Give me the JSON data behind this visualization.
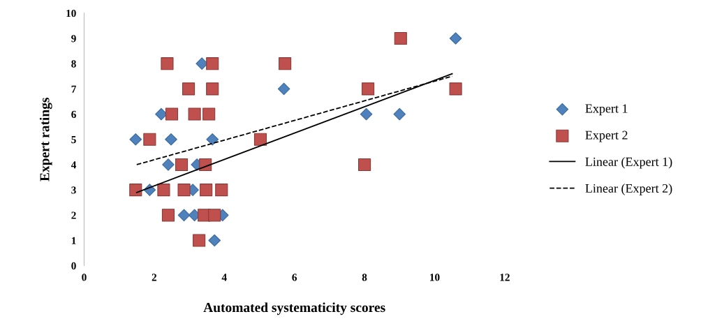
{
  "chart_data": {
    "type": "scatter",
    "xlabel": "Automated systematicity scores",
    "ylabel": "Expert ratings",
    "xlim": [
      0,
      12
    ],
    "xticks": [
      0,
      2,
      4,
      6,
      8,
      10,
      12
    ],
    "ylim": [
      0,
      10
    ],
    "yticks": [
      0,
      1,
      2,
      3,
      4,
      5,
      6,
      7,
      8,
      9,
      10
    ],
    "grid": false,
    "legend": "right",
    "series": [
      {
        "name": "Expert 1",
        "marker": "diamond",
        "color": "#4f81bd",
        "x": [
          2.2,
          3.36,
          1.47,
          2.48,
          3.66,
          2.4,
          3.22,
          1.87,
          3.1,
          2.85,
          3.15,
          3.95,
          3.72,
          5.7,
          8.05,
          9.0,
          10.6
        ],
        "values": [
          6,
          8,
          5,
          5,
          5,
          4,
          4,
          3,
          3,
          2,
          2,
          2,
          1,
          7,
          6,
          6,
          9
        ]
      },
      {
        "name": "Expert 2",
        "marker": "square",
        "color": "#c0504d",
        "x": [
          1.47,
          2.27,
          2.85,
          3.48,
          3.92,
          2.4,
          3.42,
          3.72,
          3.28,
          2.78,
          3.46,
          1.87,
          5.03,
          2.5,
          3.15,
          3.56,
          2.98,
          3.66,
          2.37,
          3.66,
          5.73,
          8.1,
          8.0,
          9.03,
          10.6
        ],
        "values": [
          3,
          3,
          3,
          3,
          3,
          2,
          2,
          2,
          1,
          4,
          4,
          5,
          5,
          6,
          6,
          6,
          7,
          7,
          8,
          8,
          8,
          7,
          4,
          9,
          7
        ]
      },
      {
        "name": "Linear (Expert 1)",
        "type": "line",
        "line_style": "solid",
        "color": "#000000",
        "x": [
          1.5,
          10.5
        ],
        "values": [
          2.9,
          7.6
        ]
      },
      {
        "name": "Linear (Expert 2)",
        "type": "line",
        "line_style": "dashed",
        "color": "#000000",
        "x": [
          1.5,
          10.5
        ],
        "values": [
          4.0,
          7.5
        ]
      }
    ]
  }
}
